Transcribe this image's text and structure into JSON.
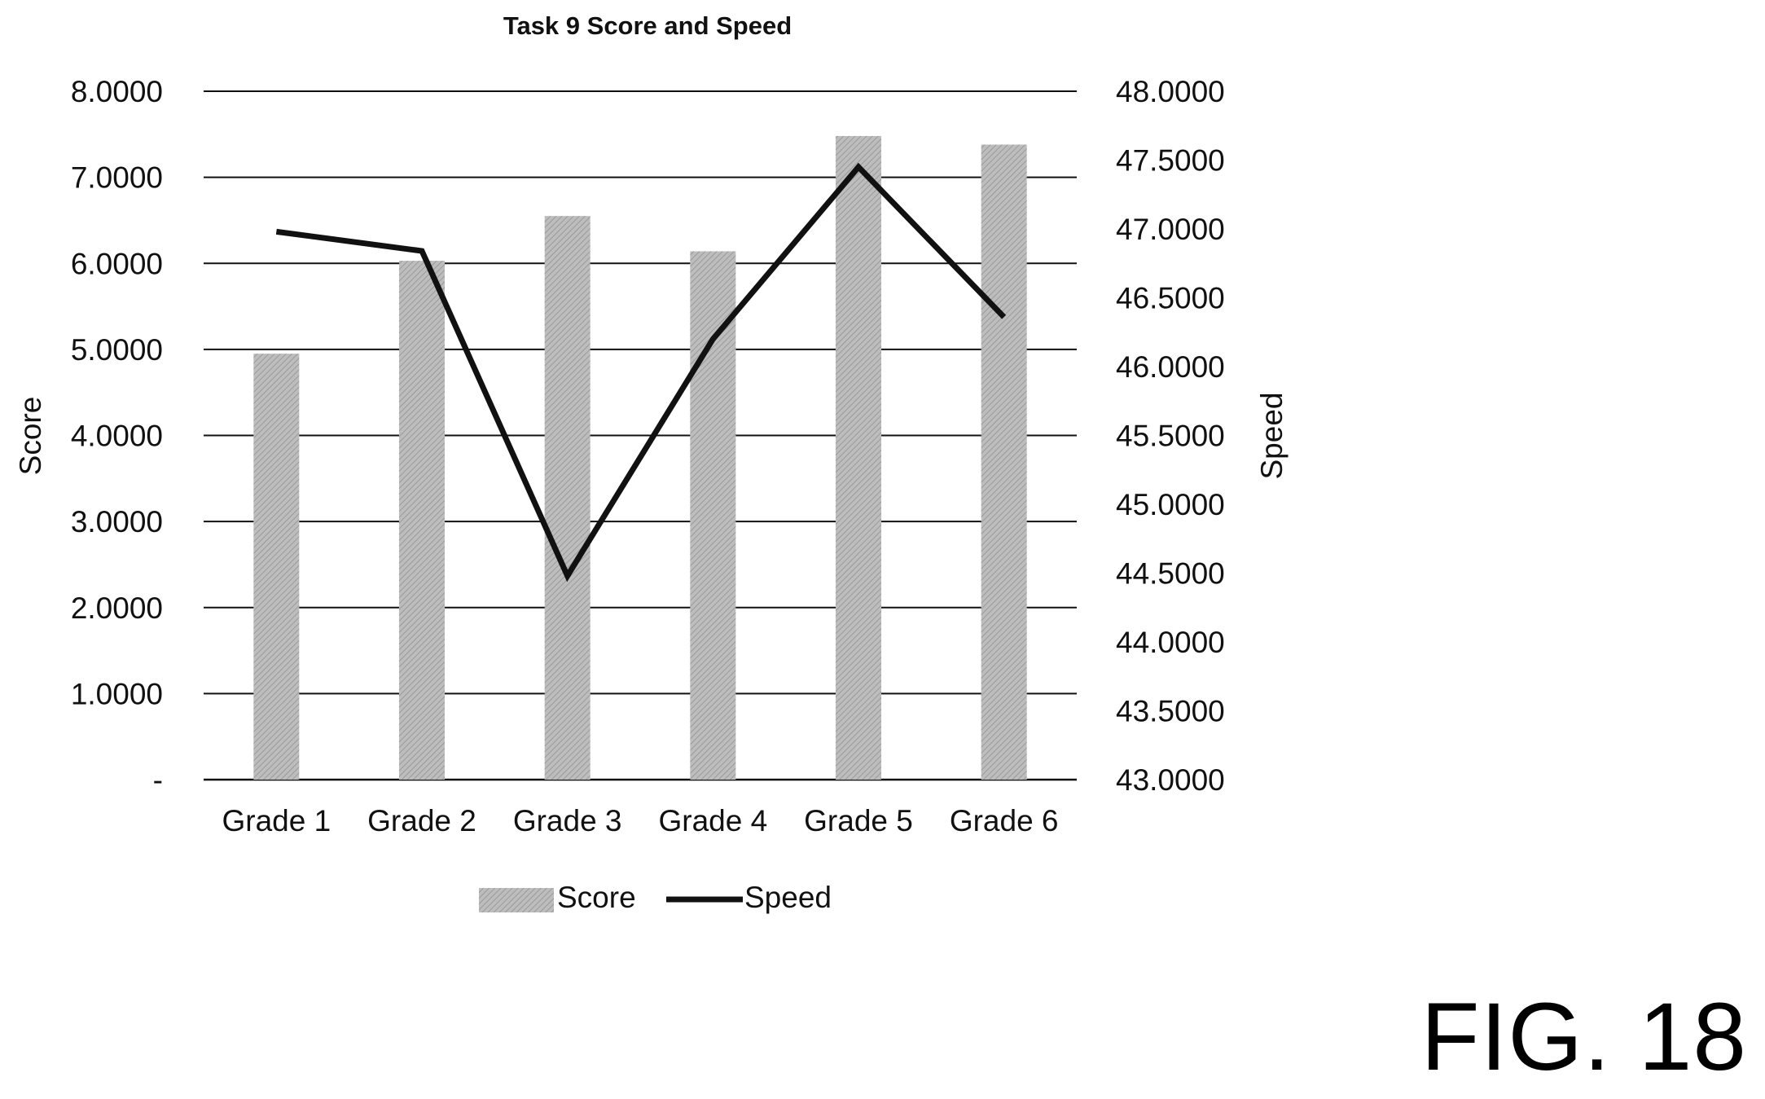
{
  "figure_label": "FIG. 18",
  "colors": {
    "bar_fill": "#bdbdbd",
    "bar_stripe": "#9a9a9a",
    "line": "#111111",
    "grid": "#111111",
    "text": "#111111"
  },
  "chart_data": {
    "type": "bar",
    "title": "Task 9 Score and Speed",
    "xlabel": "",
    "ylabel": "Score",
    "y2label": "Speed",
    "categories": [
      "Grade 1",
      "Grade 2",
      "Grade 3",
      "Grade 4",
      "Grade 5",
      "Grade 6"
    ],
    "ylim": [
      0,
      8
    ],
    "y2lim": [
      43,
      48
    ],
    "yticks": [
      "-",
      "1.0000",
      "2.0000",
      "3.0000",
      "4.0000",
      "5.0000",
      "6.0000",
      "7.0000",
      "8.0000"
    ],
    "y2ticks": [
      "43.0000",
      "43.5000",
      "44.0000",
      "44.5000",
      "45.0000",
      "45.5000",
      "46.0000",
      "46.5000",
      "47.0000",
      "47.5000",
      "48.0000"
    ],
    "grid": true,
    "legend_position": "bottom",
    "series": [
      {
        "name": "Score",
        "type": "bar",
        "axis": "left",
        "values": [
          4.95,
          6.03,
          6.55,
          6.14,
          7.48,
          7.38
        ]
      },
      {
        "name": "Speed",
        "type": "line",
        "axis": "right",
        "values": [
          46.98,
          46.84,
          44.48,
          46.2,
          47.45,
          46.36
        ]
      }
    ]
  }
}
